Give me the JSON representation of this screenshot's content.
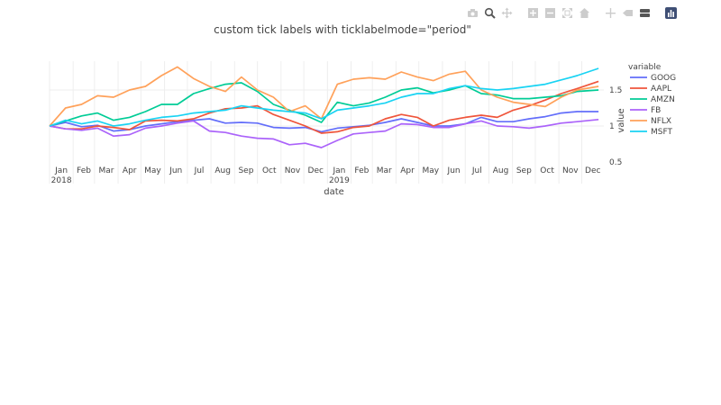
{
  "modebar": {
    "icons": [
      "camera-icon",
      "zoom-icon",
      "pan-icon",
      "zoom-in-icon",
      "zoom-out-icon",
      "autoscale-icon",
      "home-icon",
      "spike-lines-icon",
      "hover-closest-icon",
      "hover-compare-icon",
      "plotly-logo-icon"
    ]
  },
  "colors": {
    "GOOG": "#636efa",
    "AAPL": "#EF553B",
    "AMZN": "#00cc96",
    "FB": "#ab63fa",
    "NFLX": "#FFA15A",
    "MSFT": "#19d3f3",
    "grid": "#eeeeee",
    "text": "#444444"
  },
  "chart_data": {
    "type": "line",
    "title": "custom tick labels with ticklabelmode=\"period\"",
    "xlabel": "date",
    "ylabel": "value",
    "legend_title": "variable",
    "legend_position": "right",
    "grid": true,
    "xlim": [
      "2018-01-01",
      "2019-12-30"
    ],
    "ylim": [
      0.5,
      1.9
    ],
    "y_side": "right",
    "yticks": [
      {
        "value": 0.5,
        "label": "0.5"
      },
      {
        "value": 1,
        "label": "1"
      },
      {
        "value": 1.5,
        "label": "1.5"
      }
    ],
    "xticks": [
      {
        "period_start": "2018-01-01",
        "label": "Jan",
        "year_label": "2018"
      },
      {
        "period_start": "2018-02-01",
        "label": "Feb"
      },
      {
        "period_start": "2018-03-01",
        "label": "Mar"
      },
      {
        "period_start": "2018-04-01",
        "label": "Apr"
      },
      {
        "period_start": "2018-05-01",
        "label": "May"
      },
      {
        "period_start": "2018-06-01",
        "label": "Jun"
      },
      {
        "period_start": "2018-07-01",
        "label": "Jul"
      },
      {
        "period_start": "2018-08-01",
        "label": "Aug"
      },
      {
        "period_start": "2018-09-01",
        "label": "Sep"
      },
      {
        "period_start": "2018-10-01",
        "label": "Oct"
      },
      {
        "period_start": "2018-11-01",
        "label": "Nov"
      },
      {
        "period_start": "2018-12-01",
        "label": "Dec"
      },
      {
        "period_start": "2019-01-01",
        "label": "Jan",
        "year_label": "2019"
      },
      {
        "period_start": "2019-02-01",
        "label": "Feb"
      },
      {
        "period_start": "2019-03-01",
        "label": "Mar"
      },
      {
        "period_start": "2019-04-01",
        "label": "Apr"
      },
      {
        "period_start": "2019-05-01",
        "label": "May"
      },
      {
        "period_start": "2019-06-01",
        "label": "Jun"
      },
      {
        "period_start": "2019-07-01",
        "label": "Jul"
      },
      {
        "period_start": "2019-08-01",
        "label": "Aug"
      },
      {
        "period_start": "2019-09-01",
        "label": "Sep"
      },
      {
        "period_start": "2019-10-01",
        "label": "Oct"
      },
      {
        "period_start": "2019-11-01",
        "label": "Nov"
      },
      {
        "period_start": "2019-12-01",
        "label": "Dec"
      }
    ],
    "series": [
      {
        "name": "GOOG",
        "points": [
          [
            "2018-01-01",
            1.0
          ],
          [
            "2018-01-22",
            1.05
          ],
          [
            "2018-02-12",
            0.99
          ],
          [
            "2018-03-05",
            1.01
          ],
          [
            "2018-03-26",
            0.93
          ],
          [
            "2018-04-16",
            0.95
          ],
          [
            "2018-05-07",
            1.0
          ],
          [
            "2018-05-28",
            1.03
          ],
          [
            "2018-06-18",
            1.06
          ],
          [
            "2018-07-09",
            1.08
          ],
          [
            "2018-07-30",
            1.1
          ],
          [
            "2018-08-20",
            1.04
          ],
          [
            "2018-09-10",
            1.05
          ],
          [
            "2018-10-01",
            1.04
          ],
          [
            "2018-10-22",
            0.98
          ],
          [
            "2018-11-12",
            0.97
          ],
          [
            "2018-12-03",
            0.98
          ],
          [
            "2018-12-24",
            0.92
          ],
          [
            "2019-01-14",
            0.97
          ],
          [
            "2019-02-04",
            0.99
          ],
          [
            "2019-02-25",
            1.01
          ],
          [
            "2019-03-18",
            1.05
          ],
          [
            "2019-04-08",
            1.1
          ],
          [
            "2019-04-29",
            1.05
          ],
          [
            "2019-05-20",
            1.0
          ],
          [
            "2019-06-10",
            1.0
          ],
          [
            "2019-07-01",
            1.03
          ],
          [
            "2019-07-22",
            1.12
          ],
          [
            "2019-08-12",
            1.06
          ],
          [
            "2019-09-02",
            1.06
          ],
          [
            "2019-09-23",
            1.1
          ],
          [
            "2019-10-14",
            1.13
          ],
          [
            "2019-11-04",
            1.18
          ],
          [
            "2019-11-25",
            1.2
          ],
          [
            "2019-12-23",
            1.2
          ]
        ]
      },
      {
        "name": "AAPL",
        "points": [
          [
            "2018-01-01",
            1.0
          ],
          [
            "2018-01-22",
            0.96
          ],
          [
            "2018-02-12",
            0.96
          ],
          [
            "2018-03-05",
            1.0
          ],
          [
            "2018-03-26",
            0.98
          ],
          [
            "2018-04-16",
            0.95
          ],
          [
            "2018-05-07",
            1.07
          ],
          [
            "2018-05-28",
            1.08
          ],
          [
            "2018-06-18",
            1.07
          ],
          [
            "2018-07-09",
            1.1
          ],
          [
            "2018-07-30",
            1.18
          ],
          [
            "2018-08-20",
            1.24
          ],
          [
            "2018-09-10",
            1.25
          ],
          [
            "2018-10-01",
            1.28
          ],
          [
            "2018-10-22",
            1.16
          ],
          [
            "2018-11-12",
            1.08
          ],
          [
            "2018-12-03",
            1.0
          ],
          [
            "2018-12-24",
            0.9
          ],
          [
            "2019-01-14",
            0.92
          ],
          [
            "2019-02-04",
            0.98
          ],
          [
            "2019-02-25",
            1.0
          ],
          [
            "2019-03-18",
            1.1
          ],
          [
            "2019-04-08",
            1.16
          ],
          [
            "2019-04-29",
            1.12
          ],
          [
            "2019-05-20",
            1.0
          ],
          [
            "2019-06-10",
            1.08
          ],
          [
            "2019-07-01",
            1.12
          ],
          [
            "2019-07-22",
            1.15
          ],
          [
            "2019-08-12",
            1.12
          ],
          [
            "2019-09-02",
            1.22
          ],
          [
            "2019-09-23",
            1.28
          ],
          [
            "2019-10-14",
            1.36
          ],
          [
            "2019-11-04",
            1.45
          ],
          [
            "2019-11-25",
            1.52
          ],
          [
            "2019-12-23",
            1.62
          ]
        ]
      },
      {
        "name": "AMZN",
        "points": [
          [
            "2018-01-01",
            1.0
          ],
          [
            "2018-01-22",
            1.07
          ],
          [
            "2018-02-12",
            1.14
          ],
          [
            "2018-03-05",
            1.18
          ],
          [
            "2018-03-26",
            1.08
          ],
          [
            "2018-04-16",
            1.12
          ],
          [
            "2018-05-07",
            1.2
          ],
          [
            "2018-05-28",
            1.3
          ],
          [
            "2018-06-18",
            1.3
          ],
          [
            "2018-07-09",
            1.45
          ],
          [
            "2018-07-30",
            1.52
          ],
          [
            "2018-08-20",
            1.58
          ],
          [
            "2018-09-10",
            1.6
          ],
          [
            "2018-10-01",
            1.48
          ],
          [
            "2018-10-22",
            1.3
          ],
          [
            "2018-11-12",
            1.22
          ],
          [
            "2018-12-03",
            1.15
          ],
          [
            "2018-12-24",
            1.05
          ],
          [
            "2019-01-14",
            1.33
          ],
          [
            "2019-02-04",
            1.28
          ],
          [
            "2019-02-25",
            1.32
          ],
          [
            "2019-03-18",
            1.4
          ],
          [
            "2019-04-08",
            1.5
          ],
          [
            "2019-04-29",
            1.53
          ],
          [
            "2019-05-20",
            1.46
          ],
          [
            "2019-06-10",
            1.5
          ],
          [
            "2019-07-01",
            1.56
          ],
          [
            "2019-07-22",
            1.45
          ],
          [
            "2019-08-12",
            1.43
          ],
          [
            "2019-09-02",
            1.38
          ],
          [
            "2019-09-23",
            1.38
          ],
          [
            "2019-10-14",
            1.4
          ],
          [
            "2019-11-04",
            1.42
          ],
          [
            "2019-11-25",
            1.48
          ],
          [
            "2019-12-23",
            1.5
          ]
        ]
      },
      {
        "name": "FB",
        "points": [
          [
            "2018-01-01",
            1.0
          ],
          [
            "2018-01-22",
            0.96
          ],
          [
            "2018-02-12",
            0.94
          ],
          [
            "2018-03-05",
            0.97
          ],
          [
            "2018-03-26",
            0.86
          ],
          [
            "2018-04-16",
            0.88
          ],
          [
            "2018-05-07",
            0.97
          ],
          [
            "2018-05-28",
            1.0
          ],
          [
            "2018-06-18",
            1.04
          ],
          [
            "2018-07-09",
            1.07
          ],
          [
            "2018-07-30",
            0.93
          ],
          [
            "2018-08-20",
            0.91
          ],
          [
            "2018-09-10",
            0.86
          ],
          [
            "2018-10-01",
            0.83
          ],
          [
            "2018-10-22",
            0.82
          ],
          [
            "2018-11-12",
            0.74
          ],
          [
            "2018-12-03",
            0.76
          ],
          [
            "2018-12-24",
            0.7
          ],
          [
            "2019-01-14",
            0.8
          ],
          [
            "2019-02-04",
            0.89
          ],
          [
            "2019-02-25",
            0.91
          ],
          [
            "2019-03-18",
            0.93
          ],
          [
            "2019-04-08",
            1.03
          ],
          [
            "2019-04-29",
            1.02
          ],
          [
            "2019-05-20",
            0.98
          ],
          [
            "2019-06-10",
            0.98
          ],
          [
            "2019-07-01",
            1.03
          ],
          [
            "2019-07-22",
            1.07
          ],
          [
            "2019-08-12",
            1.0
          ],
          [
            "2019-09-02",
            0.99
          ],
          [
            "2019-09-23",
            0.97
          ],
          [
            "2019-10-14",
            1.0
          ],
          [
            "2019-11-04",
            1.04
          ],
          [
            "2019-11-25",
            1.06
          ],
          [
            "2019-12-23",
            1.09
          ]
        ]
      },
      {
        "name": "NFLX",
        "points": [
          [
            "2018-01-01",
            1.0
          ],
          [
            "2018-01-22",
            1.25
          ],
          [
            "2018-02-12",
            1.3
          ],
          [
            "2018-03-05",
            1.42
          ],
          [
            "2018-03-26",
            1.4
          ],
          [
            "2018-04-16",
            1.5
          ],
          [
            "2018-05-07",
            1.55
          ],
          [
            "2018-05-28",
            1.7
          ],
          [
            "2018-06-18",
            1.82
          ],
          [
            "2018-07-09",
            1.66
          ],
          [
            "2018-07-30",
            1.55
          ],
          [
            "2018-08-20",
            1.48
          ],
          [
            "2018-09-10",
            1.68
          ],
          [
            "2018-10-01",
            1.5
          ],
          [
            "2018-10-22",
            1.4
          ],
          [
            "2018-11-12",
            1.2
          ],
          [
            "2018-12-03",
            1.28
          ],
          [
            "2018-12-24",
            1.1
          ],
          [
            "2019-01-14",
            1.58
          ],
          [
            "2019-02-04",
            1.65
          ],
          [
            "2019-02-25",
            1.67
          ],
          [
            "2019-03-18",
            1.65
          ],
          [
            "2019-04-08",
            1.75
          ],
          [
            "2019-04-29",
            1.68
          ],
          [
            "2019-05-20",
            1.63
          ],
          [
            "2019-06-10",
            1.72
          ],
          [
            "2019-07-01",
            1.76
          ],
          [
            "2019-07-22",
            1.5
          ],
          [
            "2019-08-12",
            1.4
          ],
          [
            "2019-09-02",
            1.33
          ],
          [
            "2019-09-23",
            1.3
          ],
          [
            "2019-10-14",
            1.27
          ],
          [
            "2019-11-04",
            1.4
          ],
          [
            "2019-11-25",
            1.5
          ],
          [
            "2019-12-23",
            1.55
          ]
        ]
      },
      {
        "name": "MSFT",
        "points": [
          [
            "2018-01-01",
            1.0
          ],
          [
            "2018-01-22",
            1.08
          ],
          [
            "2018-02-12",
            1.03
          ],
          [
            "2018-03-05",
            1.07
          ],
          [
            "2018-03-26",
            1.0
          ],
          [
            "2018-04-16",
            1.03
          ],
          [
            "2018-05-07",
            1.08
          ],
          [
            "2018-05-28",
            1.12
          ],
          [
            "2018-06-18",
            1.14
          ],
          [
            "2018-07-09",
            1.18
          ],
          [
            "2018-07-30",
            1.2
          ],
          [
            "2018-08-20",
            1.22
          ],
          [
            "2018-09-10",
            1.28
          ],
          [
            "2018-10-01",
            1.25
          ],
          [
            "2018-10-22",
            1.22
          ],
          [
            "2018-11-12",
            1.2
          ],
          [
            "2018-12-03",
            1.18
          ],
          [
            "2018-12-24",
            1.1
          ],
          [
            "2019-01-14",
            1.22
          ],
          [
            "2019-02-04",
            1.25
          ],
          [
            "2019-02-25",
            1.28
          ],
          [
            "2019-03-18",
            1.32
          ],
          [
            "2019-04-08",
            1.4
          ],
          [
            "2019-04-29",
            1.45
          ],
          [
            "2019-05-20",
            1.45
          ],
          [
            "2019-06-10",
            1.52
          ],
          [
            "2019-07-01",
            1.56
          ],
          [
            "2019-07-22",
            1.52
          ],
          [
            "2019-08-12",
            1.5
          ],
          [
            "2019-09-02",
            1.52
          ],
          [
            "2019-09-23",
            1.55
          ],
          [
            "2019-10-14",
            1.58
          ],
          [
            "2019-11-04",
            1.64
          ],
          [
            "2019-11-25",
            1.7
          ],
          [
            "2019-12-23",
            1.8
          ]
        ]
      }
    ]
  }
}
